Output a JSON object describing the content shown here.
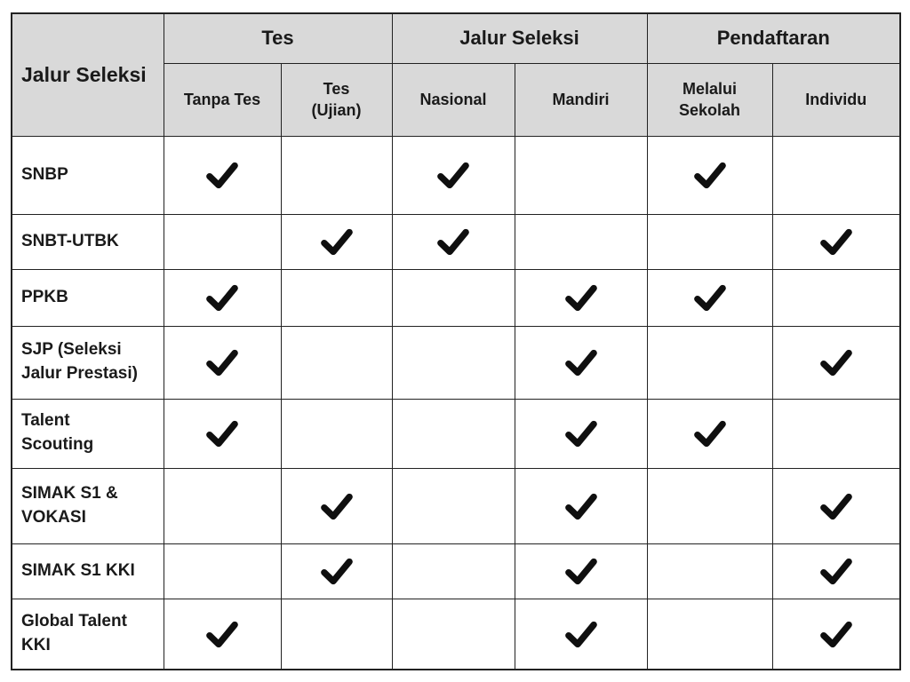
{
  "table": {
    "corner_header": "Jalur Seleksi",
    "groups": [
      {
        "label": "Tes"
      },
      {
        "label": "Jalur Seleksi"
      },
      {
        "label": "Pendaftaran"
      }
    ],
    "columns": [
      "Tanpa Tes",
      "Tes\n(Ujian)",
      "Nasional",
      "Mandiri",
      "Melalui\nSekolah",
      "Individu"
    ],
    "rows": [
      {
        "label": "SNBP",
        "checks": [
          true,
          false,
          true,
          false,
          true,
          false
        ]
      },
      {
        "label": "SNBT-UTBK",
        "checks": [
          false,
          true,
          true,
          false,
          false,
          true
        ]
      },
      {
        "label": "PPKB",
        "checks": [
          true,
          false,
          false,
          true,
          true,
          false
        ]
      },
      {
        "label": "SJP (Seleksi Jalur Prestasi)",
        "checks": [
          true,
          false,
          false,
          true,
          false,
          true
        ]
      },
      {
        "label": "Talent Scouting",
        "checks": [
          true,
          false,
          false,
          true,
          true,
          false
        ]
      },
      {
        "label": "SIMAK S1 & VOKASI",
        "checks": [
          false,
          true,
          false,
          true,
          false,
          true
        ]
      },
      {
        "label": "SIMAK S1 KKI",
        "checks": [
          false,
          true,
          false,
          true,
          false,
          true
        ]
      },
      {
        "label": "Global Talent KKI",
        "checks": [
          true,
          false,
          false,
          true,
          false,
          true
        ]
      }
    ],
    "colors": {
      "header_bg": "#d9d9d9",
      "border": "#222222",
      "check": "#0f0f0f",
      "text": "#1a1a1a",
      "page_bg": "#ffffff"
    }
  },
  "chart_data": {
    "type": "table",
    "title": "",
    "row_header": "Jalur Seleksi",
    "column_groups": [
      {
        "label": "Tes",
        "columns": [
          "Tanpa Tes",
          "Tes (Ujian)"
        ]
      },
      {
        "label": "Jalur Seleksi",
        "columns": [
          "Nasional",
          "Mandiri"
        ]
      },
      {
        "label": "Pendaftaran",
        "columns": [
          "Melalui Sekolah",
          "Individu"
        ]
      }
    ],
    "columns": [
      "Tanpa Tes",
      "Tes (Ujian)",
      "Nasional",
      "Mandiri",
      "Melalui Sekolah",
      "Individu"
    ],
    "rows": [
      {
        "label": "SNBP",
        "values": [
          1,
          0,
          1,
          0,
          1,
          0
        ]
      },
      {
        "label": "SNBT-UTBK",
        "values": [
          0,
          1,
          1,
          0,
          0,
          1
        ]
      },
      {
        "label": "PPKB",
        "values": [
          1,
          0,
          0,
          1,
          1,
          0
        ]
      },
      {
        "label": "SJP (Seleksi Jalur Prestasi)",
        "values": [
          1,
          0,
          0,
          1,
          0,
          1
        ]
      },
      {
        "label": "Talent Scouting",
        "values": [
          1,
          0,
          0,
          1,
          1,
          0
        ]
      },
      {
        "label": "SIMAK S1 & VOKASI",
        "values": [
          0,
          1,
          0,
          1,
          0,
          1
        ]
      },
      {
        "label": "SIMAK S1 KKI",
        "values": [
          0,
          1,
          0,
          1,
          0,
          1
        ]
      },
      {
        "label": "Global Talent KKI",
        "values": [
          1,
          0,
          0,
          1,
          0,
          1
        ]
      }
    ],
    "cell_mark_legend": "1 = checkmark shown, 0 = empty cell",
    "grid": true,
    "legend_position": "none"
  }
}
